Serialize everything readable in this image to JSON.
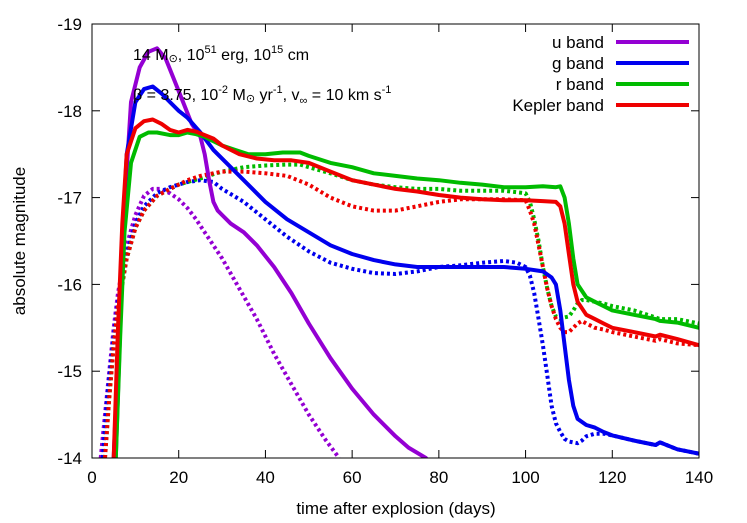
{
  "chart_data": {
    "type": "line",
    "xlabel": "time after explosion (days)",
    "ylabel": "absolute magnitude",
    "xlim": [
      0,
      140
    ],
    "ylim": [
      -14,
      -19
    ],
    "y_inverted": true,
    "x_ticks": [
      0,
      20,
      40,
      60,
      80,
      100,
      120,
      140
    ],
    "y_ticks": [
      -19,
      -18,
      -17,
      -16,
      -15,
      -14
    ],
    "x_tick_labels": [
      "0",
      "20",
      "40",
      "60",
      "80",
      "100",
      "120",
      "140"
    ],
    "y_tick_labels": [
      "-19",
      "-18",
      "-17",
      "-16",
      "-15",
      "-14"
    ],
    "grid": false,
    "legend_position": "top-right",
    "annotation_line1": {
      "t1": "14 M",
      "t2": ", 10",
      "sup1": "51",
      "t3": " erg, 10",
      "sup2": "15",
      "t4": " cm"
    },
    "annotation_line2": {
      "t1": "β = 3.75, 10",
      "sup1": "-2",
      "t2": " M",
      "t3": " yr",
      "sup2": "-1",
      "t4": ", v",
      "sub1": "∞",
      "t5": " = 10 km s",
      "sup3": "-1"
    },
    "sun_symbol": "⊙",
    "series": [
      {
        "name": "u band",
        "color": "#9400d3",
        "style": "solid",
        "x": [
          5.5,
          6.5,
          7.5,
          9,
          11,
          13,
          15,
          17,
          19,
          21,
          23,
          25,
          26,
          27,
          28,
          29,
          30,
          32,
          35,
          38,
          42,
          46,
          50,
          55,
          60,
          65,
          70,
          73,
          77
        ],
        "y": [
          -14,
          -15.5,
          -16.9,
          -18.1,
          -18.5,
          -18.68,
          -18.72,
          -18.6,
          -18.35,
          -18.1,
          -17.85,
          -17.7,
          -17.5,
          -17.2,
          -16.95,
          -16.85,
          -16.8,
          -16.7,
          -16.6,
          -16.45,
          -16.2,
          -15.9,
          -15.55,
          -15.15,
          -14.8,
          -14.5,
          -14.25,
          -14.12,
          -14
        ]
      },
      {
        "name": "g band",
        "color": "#0000ee",
        "style": "solid",
        "x": [
          5,
          6,
          7,
          8,
          10,
          12,
          14,
          16,
          18,
          20,
          22,
          25,
          28,
          32,
          36,
          40,
          45,
          50,
          55,
          60,
          65,
          70,
          75,
          80,
          85,
          90,
          95,
          100,
          104,
          106,
          107,
          108,
          109,
          110,
          111,
          112,
          114,
          116,
          118,
          120,
          125,
          130,
          131,
          135,
          140
        ],
        "y": [
          -14,
          -15.2,
          -16.5,
          -17.5,
          -18.1,
          -18.25,
          -18.28,
          -18.2,
          -18.1,
          -18.0,
          -17.92,
          -17.75,
          -17.55,
          -17.35,
          -17.15,
          -16.95,
          -16.75,
          -16.6,
          -16.45,
          -16.35,
          -16.28,
          -16.23,
          -16.2,
          -16.2,
          -16.2,
          -16.2,
          -16.2,
          -16.18,
          -16.15,
          -16.08,
          -16.0,
          -15.7,
          -15.3,
          -14.9,
          -14.6,
          -14.45,
          -14.38,
          -14.35,
          -14.3,
          -14.26,
          -14.2,
          -14.15,
          -14.18,
          -14.1,
          -14.05
        ]
      },
      {
        "name": "r band",
        "color": "#00bb00",
        "style": "solid",
        "x": [
          5.5,
          6.5,
          7.5,
          9,
          11,
          13,
          15,
          18,
          20,
          22,
          24,
          26,
          28,
          30,
          33,
          36,
          40,
          44,
          48,
          50,
          55,
          60,
          65,
          70,
          75,
          80,
          85,
          90,
          95,
          100,
          104,
          107,
          108,
          109,
          110,
          111,
          112,
          114,
          116,
          118,
          120,
          125,
          130,
          131,
          135,
          140
        ],
        "y": [
          -14,
          -15.4,
          -16.6,
          -17.4,
          -17.7,
          -17.75,
          -17.75,
          -17.72,
          -17.72,
          -17.75,
          -17.73,
          -17.7,
          -17.65,
          -17.6,
          -17.55,
          -17.5,
          -17.5,
          -17.52,
          -17.52,
          -17.48,
          -17.4,
          -17.35,
          -17.28,
          -17.25,
          -17.22,
          -17.2,
          -17.17,
          -17.15,
          -17.12,
          -17.12,
          -17.13,
          -17.12,
          -17.13,
          -17.0,
          -16.7,
          -16.3,
          -16.0,
          -15.85,
          -15.8,
          -15.75,
          -15.7,
          -15.65,
          -15.6,
          -15.58,
          -15.56,
          -15.5
        ]
      },
      {
        "name": "Kepler band",
        "color": "#ee0000",
        "style": "solid",
        "x": [
          5,
          6,
          7,
          8,
          10,
          12,
          14,
          16,
          18,
          20,
          22,
          24,
          26,
          28,
          30,
          34,
          38,
          42,
          46,
          50,
          55,
          60,
          65,
          70,
          75,
          80,
          85,
          90,
          95,
          100,
          104,
          107,
          108,
          109,
          110,
          111,
          112,
          114,
          116,
          118,
          120,
          125,
          130,
          131,
          135,
          140
        ],
        "y": [
          -14,
          -15.5,
          -16.7,
          -17.5,
          -17.8,
          -17.88,
          -17.9,
          -17.85,
          -17.78,
          -17.75,
          -17.78,
          -17.76,
          -17.72,
          -17.68,
          -17.6,
          -17.5,
          -17.45,
          -17.43,
          -17.43,
          -17.4,
          -17.3,
          -17.2,
          -17.15,
          -17.1,
          -17.07,
          -17.03,
          -17.0,
          -16.98,
          -16.97,
          -16.97,
          -16.96,
          -16.95,
          -16.9,
          -16.7,
          -16.35,
          -16.0,
          -15.8,
          -15.65,
          -15.6,
          -15.55,
          -15.5,
          -15.45,
          -15.4,
          -15.42,
          -15.37,
          -15.3
        ]
      },
      {
        "name": "",
        "color": "#9400d3",
        "style": "dotted",
        "x": [
          2,
          3,
          4,
          5,
          6,
          8,
          10,
          12,
          14,
          16,
          18,
          20,
          22,
          24,
          26,
          28,
          30,
          34,
          38,
          42,
          46,
          50,
          54,
          57
        ],
        "y": [
          -14.0,
          -14.5,
          -15.0,
          -15.5,
          -15.9,
          -16.45,
          -16.8,
          -17.02,
          -17.1,
          -17.1,
          -17.05,
          -16.98,
          -16.88,
          -16.75,
          -16.6,
          -16.45,
          -16.3,
          -15.95,
          -15.6,
          -15.2,
          -14.85,
          -14.5,
          -14.2,
          -14.0
        ]
      },
      {
        "name": "",
        "color": "#0000ee",
        "style": "dotted",
        "x": [
          2.5,
          3.5,
          5,
          6,
          8,
          10,
          12,
          15,
          18,
          20,
          22,
          25,
          28,
          30,
          35,
          40,
          45,
          50,
          55,
          60,
          65,
          70,
          75,
          80,
          85,
          90,
          95,
          98,
          100,
          101,
          102,
          103,
          104,
          105,
          106,
          107,
          108,
          109,
          110,
          111,
          112,
          113,
          114,
          116,
          118,
          120,
          125,
          130,
          131,
          135,
          140
        ],
        "y": [
          -14.0,
          -14.7,
          -15.4,
          -15.8,
          -16.35,
          -16.7,
          -16.9,
          -17.05,
          -17.12,
          -17.15,
          -17.18,
          -17.2,
          -17.18,
          -17.1,
          -16.95,
          -16.75,
          -16.55,
          -16.38,
          -16.25,
          -16.18,
          -16.13,
          -16.12,
          -16.15,
          -16.2,
          -16.22,
          -16.25,
          -16.27,
          -16.25,
          -16.2,
          -16.1,
          -15.9,
          -15.6,
          -15.3,
          -14.95,
          -14.6,
          -14.4,
          -14.3,
          -14.22,
          -14.19,
          -14.18,
          -14.17,
          -14.2,
          -14.25,
          -14.28,
          -14.28,
          -14.26,
          -14.2,
          -14.15,
          -14.18,
          -14.1,
          -14.05
        ]
      },
      {
        "name": "",
        "color": "#00bb00",
        "style": "dotted",
        "x": [
          3,
          4,
          5,
          6,
          8,
          10,
          12,
          15,
          18,
          20,
          22,
          25,
          28,
          30,
          35,
          40,
          45,
          48,
          50,
          55,
          60,
          65,
          70,
          75,
          80,
          85,
          90,
          95,
          100,
          101,
          102,
          103,
          104,
          105,
          106,
          107,
          108,
          109,
          110,
          111,
          112,
          113,
          114,
          116,
          118,
          120,
          125,
          130,
          131,
          135,
          140
        ],
        "y": [
          -14.0,
          -14.7,
          -15.3,
          -15.7,
          -16.3,
          -16.65,
          -16.85,
          -17.02,
          -17.1,
          -17.15,
          -17.18,
          -17.22,
          -17.27,
          -17.3,
          -17.35,
          -17.37,
          -17.38,
          -17.38,
          -17.35,
          -17.28,
          -17.2,
          -17.15,
          -17.12,
          -17.1,
          -17.1,
          -17.08,
          -17.08,
          -17.08,
          -17.05,
          -16.95,
          -16.75,
          -16.5,
          -16.2,
          -15.95,
          -15.75,
          -15.63,
          -15.6,
          -15.62,
          -15.63,
          -15.7,
          -15.78,
          -15.82,
          -15.82,
          -15.8,
          -15.78,
          -15.75,
          -15.7,
          -15.62,
          -15.6,
          -15.6,
          -15.55
        ]
      },
      {
        "name": "",
        "color": "#ee0000",
        "style": "dotted",
        "x": [
          3,
          4,
          5,
          6,
          8,
          10,
          12,
          15,
          18,
          20,
          22,
          25,
          28,
          30,
          35,
          40,
          45,
          50,
          55,
          60,
          65,
          70,
          75,
          80,
          85,
          90,
          95,
          100,
          101,
          102,
          103,
          104,
          105,
          106,
          107,
          108,
          109,
          110,
          111,
          112,
          113,
          114,
          116,
          118,
          120,
          125,
          130,
          131,
          135,
          140
        ],
        "y": [
          -14.0,
          -14.7,
          -15.3,
          -15.75,
          -16.3,
          -16.65,
          -16.85,
          -17.02,
          -17.1,
          -17.15,
          -17.2,
          -17.25,
          -17.28,
          -17.3,
          -17.3,
          -17.28,
          -17.25,
          -17.15,
          -17.0,
          -16.9,
          -16.85,
          -16.85,
          -16.9,
          -16.95,
          -16.98,
          -16.98,
          -16.98,
          -16.97,
          -16.85,
          -16.7,
          -16.45,
          -16.2,
          -15.95,
          -15.75,
          -15.6,
          -15.5,
          -15.45,
          -15.45,
          -15.5,
          -15.55,
          -15.58,
          -15.55,
          -15.5,
          -15.48,
          -15.45,
          -15.4,
          -15.35,
          -15.37,
          -15.32,
          -15.3
        ]
      }
    ]
  }
}
